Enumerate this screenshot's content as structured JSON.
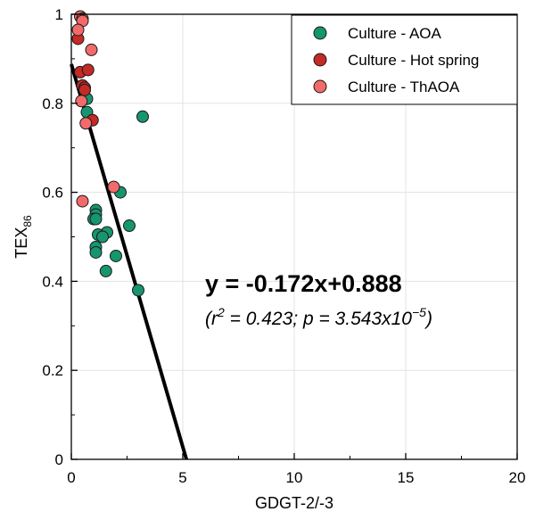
{
  "chart_data": {
    "type": "scatter",
    "xlabel": "GDGT-2/-3",
    "ylabel": "TEX",
    "ylabel_sub": "86",
    "xlim": [
      0,
      20
    ],
    "ylim": [
      0,
      1
    ],
    "x_ticks": [
      0,
      5,
      10,
      15,
      20
    ],
    "y_ticks": [
      0,
      0.2,
      0.4,
      0.6,
      0.8,
      1
    ],
    "x_tick_labels": [
      "0",
      "5",
      "10",
      "15",
      "20"
    ],
    "y_tick_labels": [
      "0",
      "0.2",
      "0.4",
      "0.6",
      "0.8",
      "1"
    ],
    "grid": true,
    "legend_position": "top-right",
    "series": [
      {
        "name": "Culture - AOA",
        "color": "#16956f",
        "points": [
          {
            "x": 0.7,
            "y": 0.81
          },
          {
            "x": 0.7,
            "y": 0.78
          },
          {
            "x": 3.2,
            "y": 0.77
          },
          {
            "x": 2.2,
            "y": 0.6
          },
          {
            "x": 1.1,
            "y": 0.56
          },
          {
            "x": 1.1,
            "y": 0.55
          },
          {
            "x": 1.0,
            "y": 0.54
          },
          {
            "x": 1.1,
            "y": 0.54
          },
          {
            "x": 2.6,
            "y": 0.525
          },
          {
            "x": 1.6,
            "y": 0.51
          },
          {
            "x": 1.2,
            "y": 0.505
          },
          {
            "x": 1.4,
            "y": 0.5
          },
          {
            "x": 1.1,
            "y": 0.477
          },
          {
            "x": 1.1,
            "y": 0.465
          },
          {
            "x": 2.0,
            "y": 0.457
          },
          {
            "x": 1.55,
            "y": 0.423
          },
          {
            "x": 3.0,
            "y": 0.38
          }
        ]
      },
      {
        "name": "Culture - Hot spring",
        "color": "#c42a26",
        "points": [
          {
            "x": 0.3,
            "y": 0.945
          },
          {
            "x": 0.4,
            "y": 0.87
          },
          {
            "x": 0.75,
            "y": 0.875
          },
          {
            "x": 0.5,
            "y": 0.84
          },
          {
            "x": 0.6,
            "y": 0.835
          },
          {
            "x": 0.6,
            "y": 0.83
          },
          {
            "x": 0.95,
            "y": 0.762
          }
        ]
      },
      {
        "name": "Culture - ThAOA",
        "color": "#f26a6a",
        "points": [
          {
            "x": 0.4,
            "y": 0.995
          },
          {
            "x": 0.5,
            "y": 0.99
          },
          {
            "x": 0.5,
            "y": 0.985
          },
          {
            "x": 0.3,
            "y": 0.965
          },
          {
            "x": 0.9,
            "y": 0.92
          },
          {
            "x": 0.45,
            "y": 0.805
          },
          {
            "x": 0.65,
            "y": 0.755
          },
          {
            "x": 0.5,
            "y": 0.58
          },
          {
            "x": 1.9,
            "y": 0.612
          }
        ]
      }
    ],
    "fit_line": {
      "slope": -0.172,
      "intercept": 0.888,
      "color": "#000000"
    },
    "annotations": {
      "equation": "y = -0.172x+0.888",
      "stats_r_prefix": "(r",
      "stats_r_sup": "2",
      "stats_mid": " = 0.423; p = 3.543x10",
      "stats_p_sup": "−5",
      "stats_suffix": ")"
    }
  }
}
